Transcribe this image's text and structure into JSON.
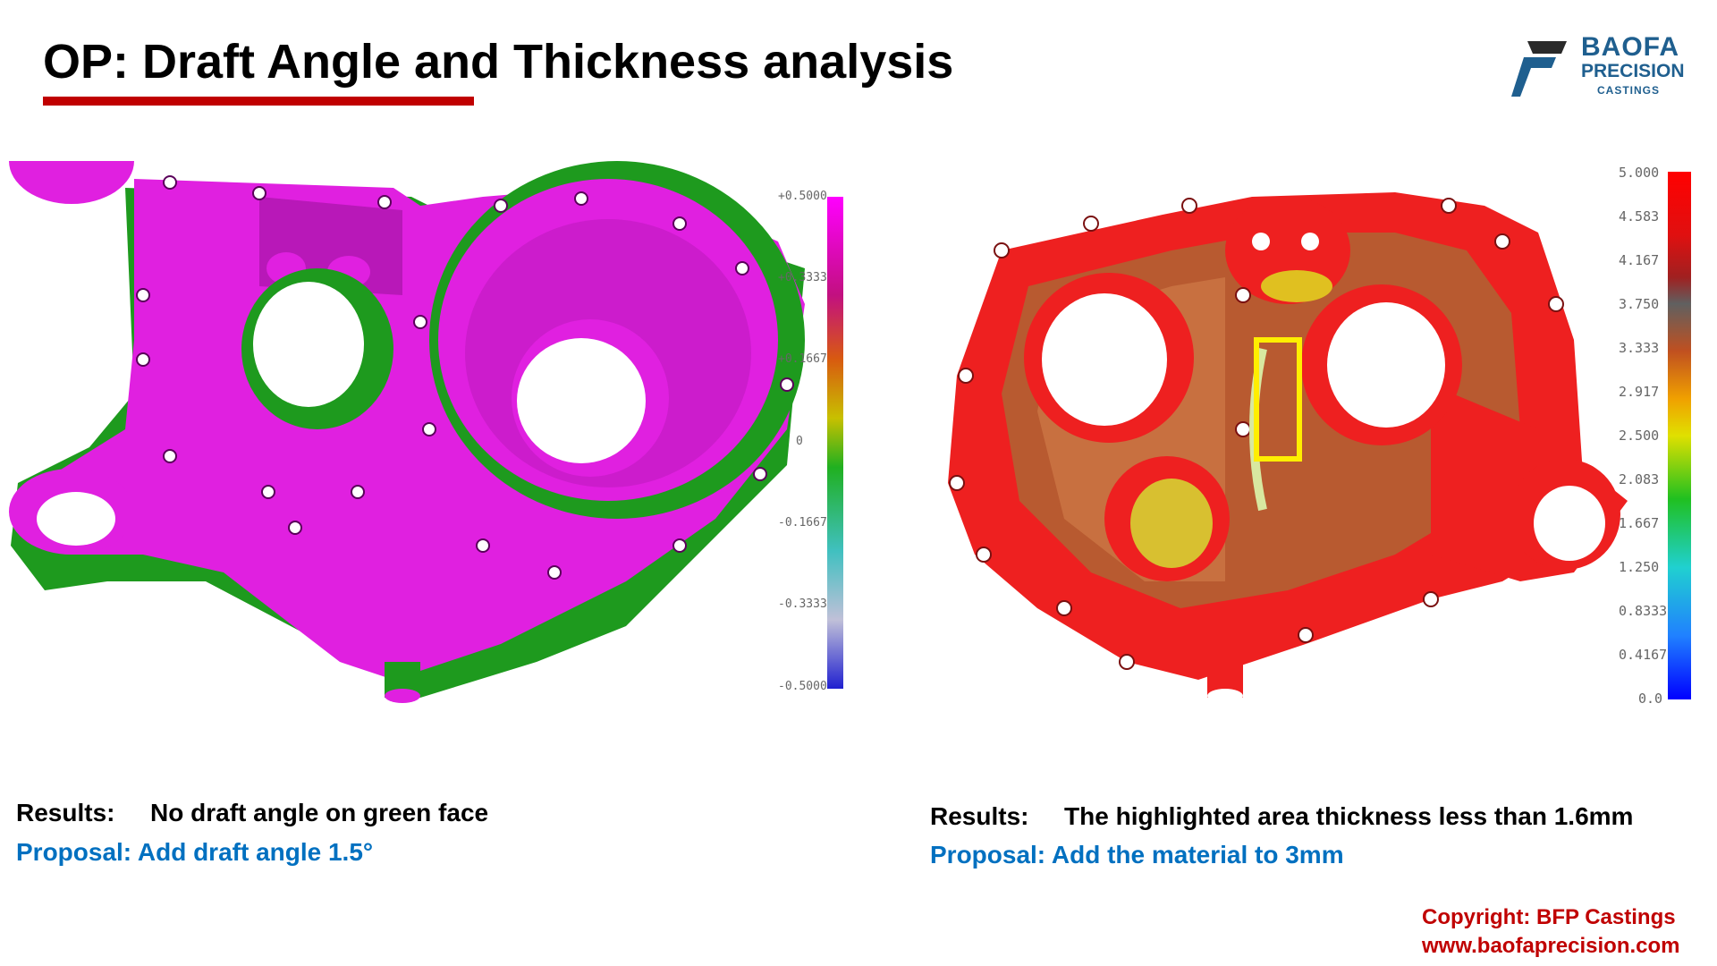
{
  "header": {
    "title": "OP: Draft Angle and Thickness analysis"
  },
  "logo": {
    "line1": "BAOFA",
    "line2": "PRECISION",
    "line3": "CASTINGS",
    "colors": {
      "primary": "#1f5f8f",
      "accent": "#2a2a2a"
    }
  },
  "left_panel": {
    "scale_labels": [
      "+0.5000",
      "+0.3333",
      "+0.1667",
      "0",
      "-0.1667",
      "-0.3333",
      "-0.5000"
    ],
    "colors": {
      "part": "#e020e0",
      "green_face": "#1e9a1e"
    },
    "results_label": "Results:",
    "results_text": "No draft angle on green face",
    "proposal_text": "Proposal: Add draft angle 1.5°"
  },
  "right_panel": {
    "scale_labels": [
      "5.000",
      "4.583",
      "4.167",
      "3.750",
      "3.333",
      "2.917",
      "2.500",
      "2.083",
      "1.667",
      "1.250",
      "0.8333",
      "0.4167",
      "0.0"
    ],
    "colors": {
      "part": "#ee2020",
      "highlight_box": "#ffee00"
    },
    "results_label": "Results:",
    "results_text": "The highlighted area thickness less than 1.6mm",
    "proposal_text": "Proposal: Add the material to 3mm"
  },
  "footer": {
    "copyright": "Copyright: BFP Castings",
    "website": "www.baofaprecision.com"
  }
}
